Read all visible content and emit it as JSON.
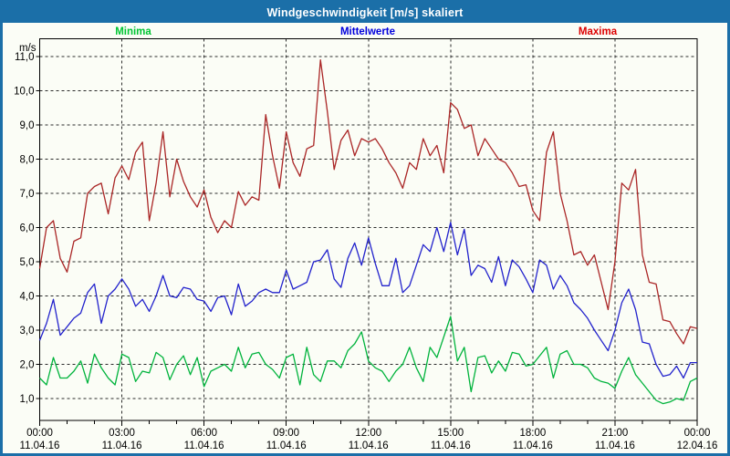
{
  "header": {
    "title": "Windgeschwindigkeit [m/s] skaliert"
  },
  "legend": [
    {
      "label": "Minima",
      "color": "#00c532"
    },
    {
      "label": "Mittelwerte",
      "color": "#0000dd"
    },
    {
      "label": "Maxima",
      "color": "#dd0000"
    }
  ],
  "colors": {
    "frame_and_header": "#1b6fa8",
    "page_background": "#fbfdf6",
    "grid": "#2a2a2a",
    "axis": "#000000",
    "series_min": "#00b33c",
    "series_mean": "#2222cc",
    "series_max": "#aa2626"
  },
  "chart_data": {
    "type": "line",
    "title": "Windgeschwindigkeit [m/s] skaliert",
    "ylabel": "m/s",
    "ylim": [
      0.35,
      11.55
    ],
    "grid": "dashed",
    "x_hours_range": [
      0,
      24
    ],
    "x_step_minutes": 15,
    "x_major_ticks": [
      {
        "time": "00:00",
        "date": "11.04.16"
      },
      {
        "time": "03:00",
        "date": "11.04.16"
      },
      {
        "time": "06:00",
        "date": "11.04.16"
      },
      {
        "time": "09:00",
        "date": "11.04.16"
      },
      {
        "time": "12:00",
        "date": "11.04.16"
      },
      {
        "time": "15:00",
        "date": "11.04.16"
      },
      {
        "time": "18:00",
        "date": "11.04.16"
      },
      {
        "time": "21:00",
        "date": "11.04.16"
      },
      {
        "time": "00:00",
        "date": "12.04.16"
      }
    ],
    "y_ticks": [
      {
        "value": 11,
        "label": "11,0"
      },
      {
        "value": 10,
        "label": "10,0"
      },
      {
        "value": 9,
        "label": "9,0"
      },
      {
        "value": 8,
        "label": "8,0"
      },
      {
        "value": 7,
        "label": "7,0"
      },
      {
        "value": 6,
        "label": "6,0"
      },
      {
        "value": 5,
        "label": "5,0"
      },
      {
        "value": 4,
        "label": "4,0"
      },
      {
        "value": 3,
        "label": "3,0"
      },
      {
        "value": 2,
        "label": "2,0"
      },
      {
        "value": 1,
        "label": "1,0"
      }
    ],
    "series": [
      {
        "name": "Minima",
        "color": "#00b33c",
        "values": [
          1.6,
          1.4,
          2.2,
          1.6,
          1.6,
          1.8,
          2.1,
          1.45,
          2.3,
          1.9,
          1.6,
          1.4,
          2.3,
          2.2,
          1.5,
          1.8,
          1.75,
          2.35,
          2.2,
          1.55,
          2.0,
          2.25,
          1.7,
          2.2,
          1.35,
          1.8,
          1.9,
          2.0,
          1.8,
          2.5,
          1.9,
          2.3,
          2.35,
          2.0,
          1.85,
          1.6,
          2.2,
          2.3,
          1.4,
          2.5,
          1.7,
          1.5,
          2.1,
          2.1,
          1.9,
          2.4,
          2.6,
          2.95,
          2.1,
          1.9,
          1.8,
          1.5,
          1.8,
          2.0,
          2.5,
          1.9,
          1.5,
          2.5,
          2.2,
          2.8,
          3.4,
          2.1,
          2.5,
          1.2,
          2.2,
          2.25,
          1.75,
          2.1,
          1.8,
          2.35,
          2.3,
          1.95,
          2.0,
          2.25,
          2.5,
          1.6,
          2.3,
          2.4,
          2.0,
          2.0,
          1.9,
          1.6,
          1.5,
          1.45,
          1.3,
          1.8,
          2.2,
          1.7,
          1.45,
          1.2,
          0.95,
          0.85,
          0.9,
          1.0,
          0.95,
          1.5,
          1.6
        ]
      },
      {
        "name": "Mittelwerte",
        "color": "#2222cc",
        "values": [
          2.7,
          3.2,
          3.9,
          2.85,
          3.1,
          3.35,
          3.5,
          4.1,
          4.35,
          3.2,
          4.0,
          4.2,
          4.5,
          4.2,
          3.7,
          3.9,
          3.55,
          4.0,
          4.6,
          4.0,
          3.95,
          4.25,
          4.2,
          3.9,
          3.85,
          3.55,
          3.95,
          4.0,
          3.45,
          4.35,
          3.7,
          3.85,
          4.1,
          4.2,
          4.1,
          4.1,
          4.75,
          4.2,
          4.3,
          4.4,
          5.0,
          5.05,
          5.35,
          4.5,
          4.25,
          5.1,
          5.55,
          4.9,
          5.7,
          4.95,
          4.3,
          4.3,
          5.1,
          4.1,
          4.3,
          4.9,
          5.5,
          5.3,
          6.0,
          5.3,
          6.15,
          5.2,
          5.95,
          4.6,
          4.9,
          4.8,
          4.4,
          5.15,
          4.3,
          5.05,
          4.85,
          4.5,
          4.1,
          5.05,
          4.9,
          4.2,
          4.6,
          4.3,
          3.8,
          3.6,
          3.35,
          3.0,
          2.7,
          2.4,
          3.0,
          3.8,
          4.2,
          3.6,
          2.65,
          2.6,
          2.0,
          1.65,
          1.7,
          1.95,
          1.6,
          2.05,
          2.05
        ]
      },
      {
        "name": "Maxima",
        "color": "#aa2626",
        "values": [
          4.8,
          6.0,
          6.2,
          5.1,
          4.7,
          5.6,
          5.7,
          7.0,
          7.2,
          7.3,
          6.4,
          7.45,
          7.8,
          7.4,
          8.2,
          8.5,
          6.2,
          7.3,
          8.8,
          6.9,
          8.0,
          7.35,
          6.9,
          6.6,
          7.1,
          6.3,
          5.85,
          6.2,
          6.0,
          7.05,
          6.65,
          6.9,
          6.8,
          9.3,
          8.1,
          7.15,
          8.8,
          7.9,
          7.5,
          8.3,
          8.4,
          10.9,
          9.4,
          7.7,
          8.55,
          8.85,
          8.1,
          8.6,
          8.5,
          8.6,
          8.3,
          7.9,
          7.6,
          7.15,
          7.9,
          7.7,
          8.6,
          8.1,
          8.4,
          7.6,
          9.65,
          9.45,
          8.9,
          9.0,
          8.1,
          8.6,
          8.3,
          8.0,
          7.9,
          7.6,
          7.2,
          7.25,
          6.5,
          6.2,
          8.2,
          8.8,
          7.0,
          6.2,
          5.2,
          5.3,
          4.9,
          5.2,
          4.4,
          3.6,
          5.0,
          7.3,
          7.1,
          7.7,
          5.2,
          4.4,
          4.35,
          3.3,
          3.25,
          2.9,
          2.6,
          3.1,
          3.05
        ]
      }
    ]
  }
}
